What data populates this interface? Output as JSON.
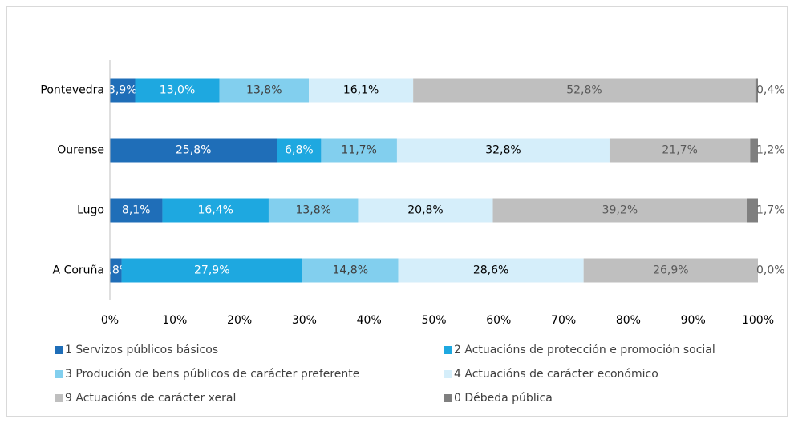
{
  "chart_data": {
    "type": "stacked-bar-horizontal",
    "categories": [
      "Pontevedra",
      "Ourense",
      "Lugo",
      "A Coruña"
    ],
    "series": [
      {
        "name": "1 Servizos públicos básicos",
        "color": "#1f6eb8",
        "label_color": "#ffffff",
        "values": [
          3.9,
          25.8,
          8.1,
          1.8
        ],
        "value_labels": [
          "3,9%",
          "25,8%",
          "8,1%",
          "1,8%"
        ]
      },
      {
        "name": "2 Actuacións de protección e promoción social",
        "color": "#1ea8e0",
        "label_color": "#ffffff",
        "values": [
          13.0,
          6.8,
          16.4,
          27.9
        ],
        "value_labels": [
          "13,0%",
          "6,8%",
          "16,4%",
          "27,9%"
        ]
      },
      {
        "name": "3 Produción de bens públicos de carácter preferente",
        "color": "#82cfee",
        "label_color": "#404040",
        "values": [
          13.8,
          11.7,
          13.8,
          14.8
        ],
        "value_labels": [
          "13,8%",
          "11,7%",
          "13,8%",
          "14,8%"
        ]
      },
      {
        "name": "4 Actuacións de carácter económico",
        "color": "#d5eefa",
        "label_color": "#000000",
        "values": [
          16.1,
          32.8,
          20.8,
          28.6
        ],
        "value_labels": [
          "16,1%",
          "32,8%",
          "20,8%",
          "28,6%"
        ]
      },
      {
        "name": "9 Actuacións de carácter xeral",
        "color": "#bfbfbf",
        "label_color": "#595959",
        "values": [
          52.8,
          21.7,
          39.2,
          26.9
        ],
        "value_labels": [
          "52,8%",
          "21,7%",
          "39,2%",
          "26,9%"
        ]
      },
      {
        "name": "0 Débeda pública",
        "color": "#7f7f7f",
        "label_color": "#595959",
        "values": [
          0.4,
          1.2,
          1.7,
          0.0
        ],
        "value_labels": [
          "0,4%",
          "1,2%",
          "1,7%",
          "0,0%"
        ]
      }
    ],
    "xlim": [
      0,
      100
    ],
    "xticks": [
      {
        "value": 0,
        "label": "0%"
      },
      {
        "value": 10,
        "label": "10%"
      },
      {
        "value": 20,
        "label": "20%"
      },
      {
        "value": 30,
        "label": "30%"
      },
      {
        "value": 40,
        "label": "40%"
      },
      {
        "value": 50,
        "label": "50%"
      },
      {
        "value": 60,
        "label": "60%"
      },
      {
        "value": 70,
        "label": "70%"
      },
      {
        "value": 80,
        "label": "80%"
      },
      {
        "value": 90,
        "label": "90%"
      },
      {
        "value": 100,
        "label": "100%"
      }
    ],
    "grid": false,
    "legend": "bottom"
  }
}
